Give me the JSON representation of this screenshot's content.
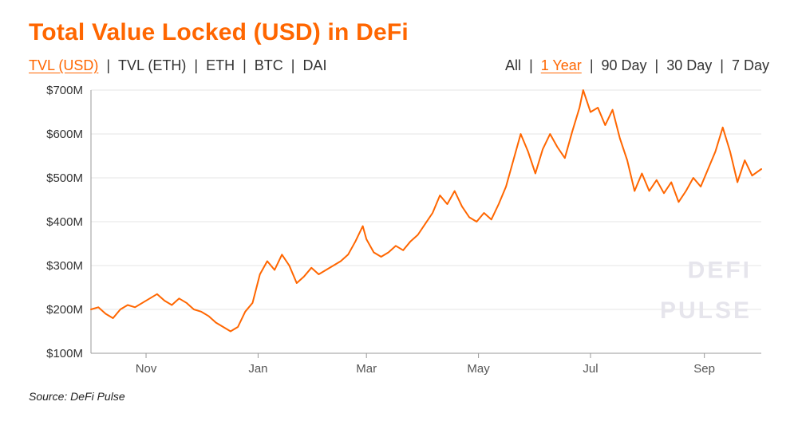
{
  "title": "Total Value Locked (USD) in DeFi",
  "colors": {
    "accent": "#ff6600",
    "text": "#333333",
    "grid": "#e5e5e5",
    "axis": "#999999",
    "watermark": "#e6e5ec",
    "background": "#ffffff"
  },
  "metric_tabs": {
    "items": [
      "TVL (USD)",
      "TVL (ETH)",
      "ETH",
      "BTC",
      "DAI"
    ],
    "active_index": 0
  },
  "range_tabs": {
    "items": [
      "All",
      "1 Year",
      "90 Day",
      "30 Day",
      "7 Day"
    ],
    "active_index": 1
  },
  "chart": {
    "type": "line",
    "line_color": "#ff6600",
    "line_width": 2,
    "background_color": "#ffffff",
    "grid_color": "#e5e5e5",
    "y_axis": {
      "min": 100,
      "max": 700,
      "tick_step": 100,
      "ticks": [
        100,
        200,
        300,
        400,
        500,
        600,
        700
      ],
      "tick_labels": [
        "$100M",
        "$200M",
        "$300M",
        "$400M",
        "$500M",
        "$600M",
        "$700M"
      ],
      "label_fontsize": 15
    },
    "x_axis": {
      "min": 0,
      "max": 365,
      "ticks": [
        30,
        91,
        150,
        211,
        272,
        334
      ],
      "tick_labels": [
        "Nov",
        "Jan",
        "Mar",
        "May",
        "Jul",
        "Sep"
      ],
      "label_fontsize": 15
    },
    "series": [
      {
        "x": 0,
        "y": 200
      },
      {
        "x": 4,
        "y": 205
      },
      {
        "x": 8,
        "y": 190
      },
      {
        "x": 12,
        "y": 180
      },
      {
        "x": 16,
        "y": 200
      },
      {
        "x": 20,
        "y": 210
      },
      {
        "x": 24,
        "y": 205
      },
      {
        "x": 28,
        "y": 215
      },
      {
        "x": 32,
        "y": 225
      },
      {
        "x": 36,
        "y": 235
      },
      {
        "x": 40,
        "y": 220
      },
      {
        "x": 44,
        "y": 210
      },
      {
        "x": 48,
        "y": 225
      },
      {
        "x": 52,
        "y": 215
      },
      {
        "x": 56,
        "y": 200
      },
      {
        "x": 60,
        "y": 195
      },
      {
        "x": 64,
        "y": 185
      },
      {
        "x": 68,
        "y": 170
      },
      {
        "x": 72,
        "y": 160
      },
      {
        "x": 76,
        "y": 150
      },
      {
        "x": 80,
        "y": 160
      },
      {
        "x": 84,
        "y": 195
      },
      {
        "x": 88,
        "y": 215
      },
      {
        "x": 92,
        "y": 280
      },
      {
        "x": 96,
        "y": 310
      },
      {
        "x": 100,
        "y": 290
      },
      {
        "x": 104,
        "y": 325
      },
      {
        "x": 108,
        "y": 300
      },
      {
        "x": 112,
        "y": 260
      },
      {
        "x": 116,
        "y": 275
      },
      {
        "x": 120,
        "y": 295
      },
      {
        "x": 124,
        "y": 280
      },
      {
        "x": 128,
        "y": 290
      },
      {
        "x": 132,
        "y": 300
      },
      {
        "x": 136,
        "y": 310
      },
      {
        "x": 140,
        "y": 325
      },
      {
        "x": 144,
        "y": 355
      },
      {
        "x": 148,
        "y": 390
      },
      {
        "x": 150,
        "y": 360
      },
      {
        "x": 154,
        "y": 330
      },
      {
        "x": 158,
        "y": 320
      },
      {
        "x": 162,
        "y": 330
      },
      {
        "x": 166,
        "y": 345
      },
      {
        "x": 170,
        "y": 335
      },
      {
        "x": 174,
        "y": 355
      },
      {
        "x": 178,
        "y": 370
      },
      {
        "x": 182,
        "y": 395
      },
      {
        "x": 186,
        "y": 420
      },
      {
        "x": 190,
        "y": 460
      },
      {
        "x": 194,
        "y": 440
      },
      {
        "x": 198,
        "y": 470
      },
      {
        "x": 202,
        "y": 435
      },
      {
        "x": 206,
        "y": 410
      },
      {
        "x": 210,
        "y": 400
      },
      {
        "x": 214,
        "y": 420
      },
      {
        "x": 218,
        "y": 405
      },
      {
        "x": 222,
        "y": 440
      },
      {
        "x": 226,
        "y": 480
      },
      {
        "x": 230,
        "y": 540
      },
      {
        "x": 234,
        "y": 600
      },
      {
        "x": 238,
        "y": 560
      },
      {
        "x": 242,
        "y": 510
      },
      {
        "x": 246,
        "y": 565
      },
      {
        "x": 250,
        "y": 600
      },
      {
        "x": 254,
        "y": 570
      },
      {
        "x": 258,
        "y": 545
      },
      {
        "x": 262,
        "y": 605
      },
      {
        "x": 266,
        "y": 660
      },
      {
        "x": 268,
        "y": 700
      },
      {
        "x": 272,
        "y": 650
      },
      {
        "x": 276,
        "y": 660
      },
      {
        "x": 280,
        "y": 620
      },
      {
        "x": 284,
        "y": 655
      },
      {
        "x": 288,
        "y": 590
      },
      {
        "x": 292,
        "y": 540
      },
      {
        "x": 296,
        "y": 470
      },
      {
        "x": 300,
        "y": 510
      },
      {
        "x": 304,
        "y": 470
      },
      {
        "x": 308,
        "y": 495
      },
      {
        "x": 312,
        "y": 465
      },
      {
        "x": 316,
        "y": 490
      },
      {
        "x": 320,
        "y": 445
      },
      {
        "x": 324,
        "y": 470
      },
      {
        "x": 328,
        "y": 500
      },
      {
        "x": 332,
        "y": 480
      },
      {
        "x": 336,
        "y": 520
      },
      {
        "x": 340,
        "y": 560
      },
      {
        "x": 344,
        "y": 615
      },
      {
        "x": 348,
        "y": 560
      },
      {
        "x": 352,
        "y": 490
      },
      {
        "x": 356,
        "y": 540
      },
      {
        "x": 360,
        "y": 505
      },
      {
        "x": 365,
        "y": 520
      }
    ],
    "watermark": {
      "line1": "DEFI",
      "line2": "PULSE",
      "fontsize": 30
    }
  },
  "source": "Source: DeFi Pulse"
}
